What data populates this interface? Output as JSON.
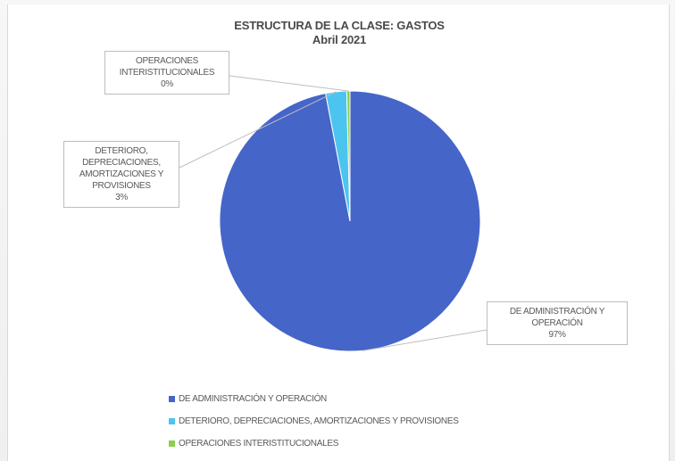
{
  "chart_data": {
    "type": "pie",
    "title": "ESTRUCTURA DE LA CLASE: GASTOS",
    "subtitle": "Abril 2021",
    "slices": [
      {
        "name": "DE ADMINISTRACIÓN Y OPERACIÓN",
        "value": 97,
        "label_lines": [
          "DE ADMINISTRACIÓN Y",
          "OPERACIÓN"
        ],
        "percent_label": "97%",
        "color": "#4565c9"
      },
      {
        "name": "DETERIORO, DEPRECIACIONES, AMORTIZACIONES Y PROVISIONES",
        "value": 2.6,
        "label_lines": [
          "DETERIORO,",
          "DEPRECIACIONES,",
          "AMORTIZACIONES Y",
          "PROVISIONES"
        ],
        "percent_label": "3%",
        "color": "#4bc5ef"
      },
      {
        "name": "OPERACIONES INTERISTITUCIONALES",
        "value": 0.4,
        "label_lines": [
          "OPERACIONES",
          "INTERISTITUCIONALES"
        ],
        "percent_label": "0%",
        "color": "#8bd04a"
      }
    ],
    "legend_position": "bottom-left"
  }
}
